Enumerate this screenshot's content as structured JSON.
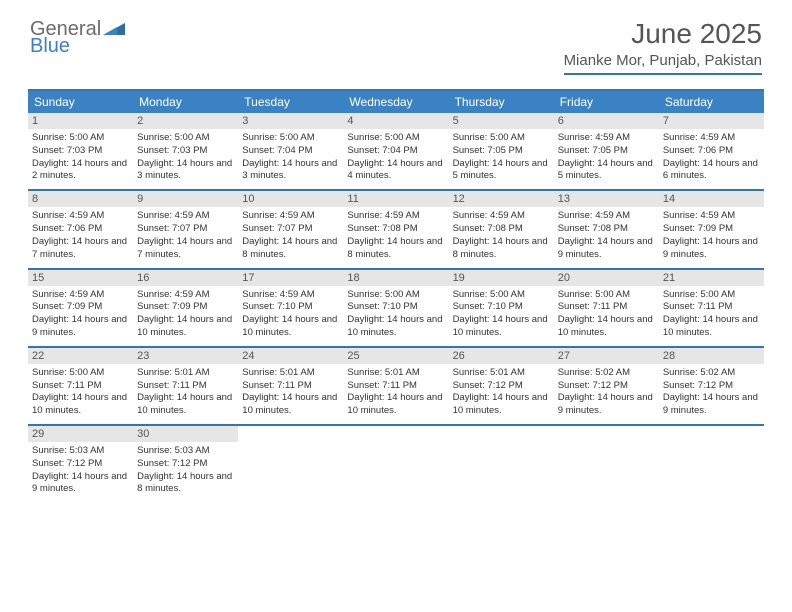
{
  "logo": {
    "general": "General",
    "blue": "Blue"
  },
  "title": "June 2025",
  "location": "Mianke Mor, Punjab, Pakistan",
  "weekdays": [
    "Sunday",
    "Monday",
    "Tuesday",
    "Wednesday",
    "Thursday",
    "Friday",
    "Saturday"
  ],
  "colors": {
    "accent": "#3b82c4",
    "header_border": "#3276b1",
    "daynum_bg": "#e6e6e6"
  },
  "weeks": [
    [
      {
        "n": "1",
        "sr": "Sunrise: 5:00 AM",
        "ss": "Sunset: 7:03 PM",
        "dl": "Daylight: 14 hours and 2 minutes."
      },
      {
        "n": "2",
        "sr": "Sunrise: 5:00 AM",
        "ss": "Sunset: 7:03 PM",
        "dl": "Daylight: 14 hours and 3 minutes."
      },
      {
        "n": "3",
        "sr": "Sunrise: 5:00 AM",
        "ss": "Sunset: 7:04 PM",
        "dl": "Daylight: 14 hours and 3 minutes."
      },
      {
        "n": "4",
        "sr": "Sunrise: 5:00 AM",
        "ss": "Sunset: 7:04 PM",
        "dl": "Daylight: 14 hours and 4 minutes."
      },
      {
        "n": "5",
        "sr": "Sunrise: 5:00 AM",
        "ss": "Sunset: 7:05 PM",
        "dl": "Daylight: 14 hours and 5 minutes."
      },
      {
        "n": "6",
        "sr": "Sunrise: 4:59 AM",
        "ss": "Sunset: 7:05 PM",
        "dl": "Daylight: 14 hours and 5 minutes."
      },
      {
        "n": "7",
        "sr": "Sunrise: 4:59 AM",
        "ss": "Sunset: 7:06 PM",
        "dl": "Daylight: 14 hours and 6 minutes."
      }
    ],
    [
      {
        "n": "8",
        "sr": "Sunrise: 4:59 AM",
        "ss": "Sunset: 7:06 PM",
        "dl": "Daylight: 14 hours and 7 minutes."
      },
      {
        "n": "9",
        "sr": "Sunrise: 4:59 AM",
        "ss": "Sunset: 7:07 PM",
        "dl": "Daylight: 14 hours and 7 minutes."
      },
      {
        "n": "10",
        "sr": "Sunrise: 4:59 AM",
        "ss": "Sunset: 7:07 PM",
        "dl": "Daylight: 14 hours and 8 minutes."
      },
      {
        "n": "11",
        "sr": "Sunrise: 4:59 AM",
        "ss": "Sunset: 7:08 PM",
        "dl": "Daylight: 14 hours and 8 minutes."
      },
      {
        "n": "12",
        "sr": "Sunrise: 4:59 AM",
        "ss": "Sunset: 7:08 PM",
        "dl": "Daylight: 14 hours and 8 minutes."
      },
      {
        "n": "13",
        "sr": "Sunrise: 4:59 AM",
        "ss": "Sunset: 7:08 PM",
        "dl": "Daylight: 14 hours and 9 minutes."
      },
      {
        "n": "14",
        "sr": "Sunrise: 4:59 AM",
        "ss": "Sunset: 7:09 PM",
        "dl": "Daylight: 14 hours and 9 minutes."
      }
    ],
    [
      {
        "n": "15",
        "sr": "Sunrise: 4:59 AM",
        "ss": "Sunset: 7:09 PM",
        "dl": "Daylight: 14 hours and 9 minutes."
      },
      {
        "n": "16",
        "sr": "Sunrise: 4:59 AM",
        "ss": "Sunset: 7:09 PM",
        "dl": "Daylight: 14 hours and 10 minutes."
      },
      {
        "n": "17",
        "sr": "Sunrise: 4:59 AM",
        "ss": "Sunset: 7:10 PM",
        "dl": "Daylight: 14 hours and 10 minutes."
      },
      {
        "n": "18",
        "sr": "Sunrise: 5:00 AM",
        "ss": "Sunset: 7:10 PM",
        "dl": "Daylight: 14 hours and 10 minutes."
      },
      {
        "n": "19",
        "sr": "Sunrise: 5:00 AM",
        "ss": "Sunset: 7:10 PM",
        "dl": "Daylight: 14 hours and 10 minutes."
      },
      {
        "n": "20",
        "sr": "Sunrise: 5:00 AM",
        "ss": "Sunset: 7:11 PM",
        "dl": "Daylight: 14 hours and 10 minutes."
      },
      {
        "n": "21",
        "sr": "Sunrise: 5:00 AM",
        "ss": "Sunset: 7:11 PM",
        "dl": "Daylight: 14 hours and 10 minutes."
      }
    ],
    [
      {
        "n": "22",
        "sr": "Sunrise: 5:00 AM",
        "ss": "Sunset: 7:11 PM",
        "dl": "Daylight: 14 hours and 10 minutes."
      },
      {
        "n": "23",
        "sr": "Sunrise: 5:01 AM",
        "ss": "Sunset: 7:11 PM",
        "dl": "Daylight: 14 hours and 10 minutes."
      },
      {
        "n": "24",
        "sr": "Sunrise: 5:01 AM",
        "ss": "Sunset: 7:11 PM",
        "dl": "Daylight: 14 hours and 10 minutes."
      },
      {
        "n": "25",
        "sr": "Sunrise: 5:01 AM",
        "ss": "Sunset: 7:11 PM",
        "dl": "Daylight: 14 hours and 10 minutes."
      },
      {
        "n": "26",
        "sr": "Sunrise: 5:01 AM",
        "ss": "Sunset: 7:12 PM",
        "dl": "Daylight: 14 hours and 10 minutes."
      },
      {
        "n": "27",
        "sr": "Sunrise: 5:02 AM",
        "ss": "Sunset: 7:12 PM",
        "dl": "Daylight: 14 hours and 9 minutes."
      },
      {
        "n": "28",
        "sr": "Sunrise: 5:02 AM",
        "ss": "Sunset: 7:12 PM",
        "dl": "Daylight: 14 hours and 9 minutes."
      }
    ],
    [
      {
        "n": "29",
        "sr": "Sunrise: 5:03 AM",
        "ss": "Sunset: 7:12 PM",
        "dl": "Daylight: 14 hours and 9 minutes."
      },
      {
        "n": "30",
        "sr": "Sunrise: 5:03 AM",
        "ss": "Sunset: 7:12 PM",
        "dl": "Daylight: 14 hours and 8 minutes."
      },
      null,
      null,
      null,
      null,
      null
    ]
  ]
}
